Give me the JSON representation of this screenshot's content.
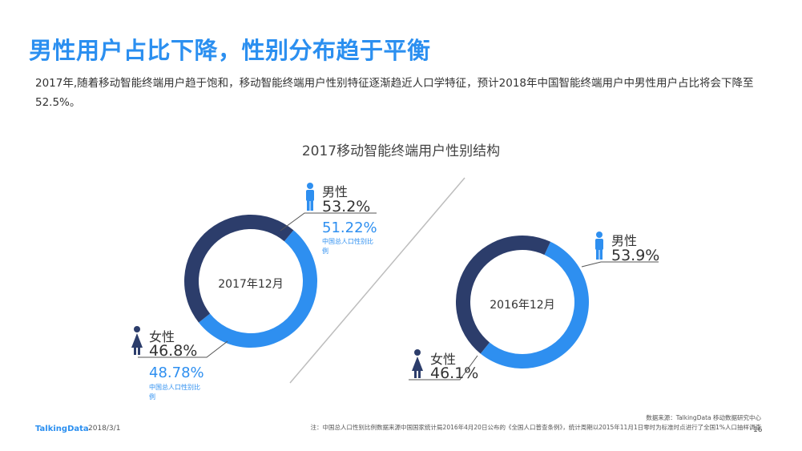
{
  "header": {
    "title": "男性用户占比下降，性别分布趋于平衡",
    "description": "2017年,随着移动智能终端用户趋于饱和，移动智能终端用户性别特征逐渐趋近人口学特征，预计2018年中国智能终端用户中男性用户占比将会下降至52.5%。"
  },
  "chart_data": [
    {
      "type": "pie",
      "title": "2017移动智能终端用户性别结构",
      "center_label": "2017年12月",
      "slices": [
        {
          "label": "男性",
          "value": 53.2,
          "value_label": "53.2%",
          "color": "#2e8ff0",
          "census_value": 51.22,
          "census_label": "51.22%",
          "census_note": "中国总人口性别比例"
        },
        {
          "label": "女性",
          "value": 46.8,
          "value_label": "46.8%",
          "color": "#2c3d6b",
          "census_value": 48.78,
          "census_label": "48.78%",
          "census_note": "中国总人口性别比例"
        }
      ]
    },
    {
      "type": "pie",
      "center_label": "2016年12月",
      "slices": [
        {
          "label": "男性",
          "value": 53.9,
          "value_label": "53.9%",
          "color": "#2e8ff0"
        },
        {
          "label": "女性",
          "value": 46.1,
          "value_label": "46.1%",
          "color": "#2c3d6b"
        }
      ]
    }
  ],
  "colors": {
    "accent": "#2e8ff0",
    "dark": "#2c3d6b",
    "title": "#2b8ff0"
  },
  "icons": {
    "male": "male-person-icon",
    "female": "female-person-icon"
  },
  "footer": {
    "logo": "TalkingData",
    "date": "2018/3/1",
    "source": "数据来源：TalkingData 移动数据研究中心",
    "note": "注：中国总人口性别比例数据来源中国国家统计局2016年4月20日公布的《全国人口普查条例》，统计周期以2015年11月1日零时为标准时点进行了全国1%人口抽样调查",
    "page": "16"
  }
}
